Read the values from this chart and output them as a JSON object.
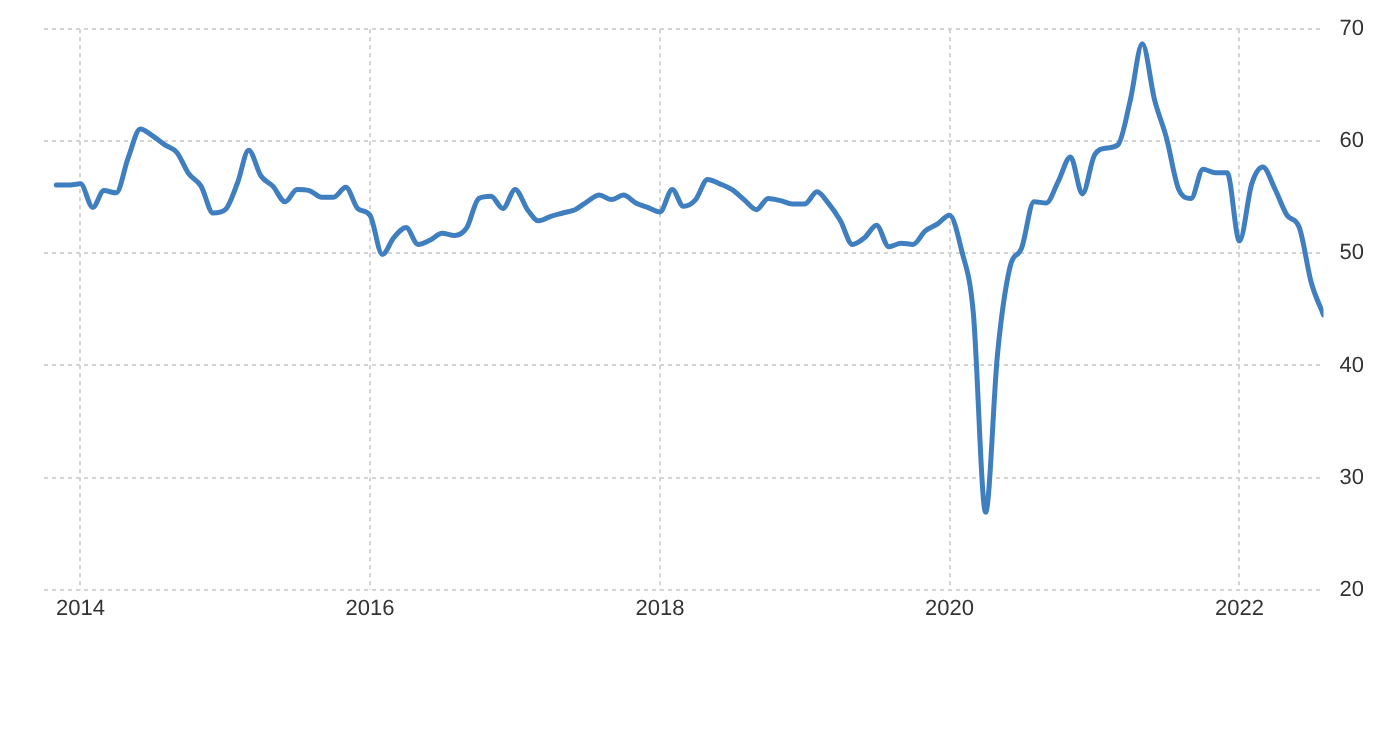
{
  "chart_data": {
    "type": "line",
    "x": [
      "2013-11",
      "2013-12",
      "2014-01",
      "2014-02",
      "2014-03",
      "2014-04",
      "2014-05",
      "2014-06",
      "2014-07",
      "2014-08",
      "2014-09",
      "2014-10",
      "2014-11",
      "2014-12",
      "2015-01",
      "2015-02",
      "2015-03",
      "2015-04",
      "2015-05",
      "2015-06",
      "2015-07",
      "2015-08",
      "2015-09",
      "2015-10",
      "2015-11",
      "2015-12",
      "2016-01",
      "2016-02",
      "2016-03",
      "2016-04",
      "2016-05",
      "2016-06",
      "2016-07",
      "2016-08",
      "2016-09",
      "2016-10",
      "2016-11",
      "2016-12",
      "2017-01",
      "2017-02",
      "2017-03",
      "2017-04",
      "2017-05",
      "2017-06",
      "2017-07",
      "2017-08",
      "2017-09",
      "2017-10",
      "2017-11",
      "2017-12",
      "2018-01",
      "2018-02",
      "2018-03",
      "2018-04",
      "2018-05",
      "2018-06",
      "2018-07",
      "2018-08",
      "2018-09",
      "2018-10",
      "2018-11",
      "2018-12",
      "2019-01",
      "2019-02",
      "2019-03",
      "2019-04",
      "2019-05",
      "2019-06",
      "2019-07",
      "2019-08",
      "2019-09",
      "2019-10",
      "2019-11",
      "2019-12",
      "2020-01",
      "2020-02",
      "2020-03",
      "2020-04",
      "2020-05",
      "2020-06",
      "2020-07",
      "2020-08",
      "2020-09",
      "2020-10",
      "2020-11",
      "2020-12",
      "2021-01",
      "2021-02",
      "2021-03",
      "2021-04",
      "2021-05",
      "2021-06",
      "2021-07",
      "2021-08",
      "2021-09",
      "2021-10",
      "2021-11",
      "2021-12",
      "2022-01",
      "2022-02",
      "2022-03",
      "2022-04",
      "2022-05",
      "2022-06",
      "2022-07",
      "2022-08"
    ],
    "series": [
      {
        "color": "#3f7fbf",
        "values": [
          56.1,
          56.1,
          56.2,
          54.1,
          55.6,
          55.4,
          58.5,
          61.1,
          60.5,
          59.7,
          59.0,
          57.1,
          56.0,
          53.6,
          53.9,
          56.3,
          59.2,
          56.9,
          56.0,
          54.6,
          55.7,
          55.6,
          55.0,
          55.0,
          55.9,
          54.0,
          53.4,
          49.9,
          51.4,
          52.3,
          50.8,
          51.2,
          51.8,
          51.6,
          52.3,
          54.9,
          55.1,
          54.0,
          55.7,
          53.9,
          52.9,
          53.3,
          53.6,
          53.9,
          54.6,
          55.2,
          54.8,
          55.2,
          54.5,
          54.1,
          53.7,
          55.7,
          54.2,
          54.8,
          56.6,
          56.2,
          55.7,
          54.8,
          53.9,
          54.9,
          54.7,
          54.4,
          54.4,
          55.5,
          54.5,
          52.9,
          50.8,
          51.4,
          52.5,
          50.6,
          50.9,
          50.8,
          52.0,
          52.6,
          53.4,
          50.2,
          44.7,
          26.9,
          41.0,
          48.7,
          50.5,
          54.6,
          54.5,
          56.4,
          58.6,
          55.3,
          58.8,
          59.4,
          59.7,
          63.7,
          68.7,
          63.7,
          60.3,
          55.7,
          54.9,
          57.5,
          57.2,
          57.2,
          51.1,
          56.2,
          57.7,
          55.7,
          53.4,
          52.3,
          47.4,
          44.5
        ]
      }
    ],
    "xlim": [
      "2013-10",
      "2022-08"
    ],
    "xticks": [
      "2014",
      "2016",
      "2018",
      "2020",
      "2022"
    ],
    "ylim": [
      20,
      70
    ],
    "yticks": [
      20,
      30,
      40,
      50,
      60,
      70
    ],
    "grid": true,
    "legend": false,
    "marker": "none",
    "line_style": "solid"
  }
}
